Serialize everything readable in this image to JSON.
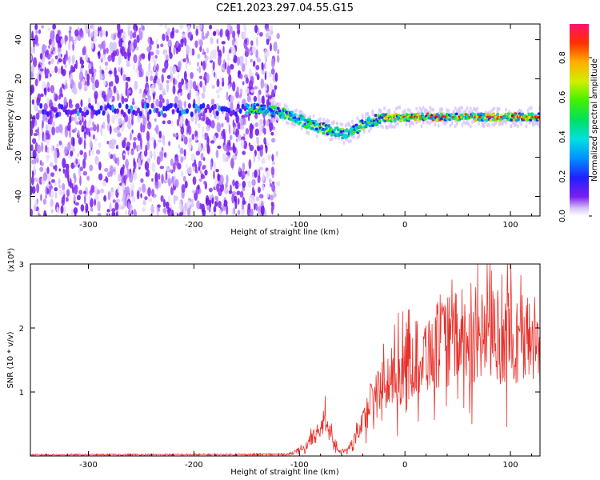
{
  "title": "C2E1.2023.297.04.55.G15",
  "chart_data": [
    {
      "type": "heatmap",
      "xlabel": "Height of straight line (km)",
      "ylabel": "Frequency (Hz)",
      "xlim": [
        -355,
        128
      ],
      "ylim": [
        -50,
        48
      ],
      "x_ticks": [
        -300,
        -200,
        -100,
        0,
        100
      ],
      "x_tick_labels": [
        "-300",
        "-200",
        "-100",
        "0",
        "100"
      ],
      "y_ticks": [
        -40,
        -20,
        0,
        20,
        40
      ],
      "y_tick_labels": [
        "-40",
        "-20",
        "0",
        "20",
        "40"
      ],
      "colorbar": {
        "label": "Normalized spectral amplitude",
        "range": [
          0,
          0.97
        ],
        "ticks": [
          0,
          0.2,
          0.4,
          0.6,
          0.8
        ],
        "tick_labels": [
          "0.0",
          "0.2",
          "0.4",
          "0.6",
          "0.8"
        ],
        "colormap": "rainbow"
      },
      "ridge": {
        "x": [
          -150,
          -130,
          -110,
          -95,
          -80,
          -65,
          -55,
          -45,
          -35,
          -20,
          0,
          40,
          80,
          128
        ],
        "y": [
          5,
          4,
          2,
          -2,
          -5,
          -7,
          -8,
          -5,
          -2,
          0,
          0.5,
          0.5,
          0.5,
          0.5
        ]
      },
      "noise_region_x": [
        -355,
        -125
      ]
    },
    {
      "type": "line",
      "xlabel": "Height of straight line (km)",
      "ylabel": "SNR (10 * v/v)",
      "y_multiplier": "(x10⁴)",
      "xlim": [
        -355,
        128
      ],
      "ylim": [
        0,
        30000
      ],
      "x_ticks": [
        -300,
        -200,
        -100,
        0,
        100
      ],
      "x_tick_labels": [
        "-300",
        "-200",
        "-100",
        "0",
        "100"
      ],
      "y_ticks": [
        10000,
        20000,
        30000
      ],
      "y_tick_labels": [
        "1",
        "2",
        "3"
      ],
      "series": [
        {
          "color": "#e8302a",
          "envelope_x": [
            -355,
            -150,
            -110,
            -95,
            -85,
            -75,
            -70,
            -62,
            -55,
            -45,
            -35,
            -25,
            -10,
            10,
            30,
            50,
            80,
            100,
            128
          ],
          "envelope_y": [
            200,
            250,
            300,
            1500,
            3500,
            6000,
            3500,
            800,
            900,
            3500,
            8000,
            11000,
            13500,
            16500,
            18500,
            20000,
            20500,
            20000,
            19500
          ]
        }
      ]
    }
  ]
}
